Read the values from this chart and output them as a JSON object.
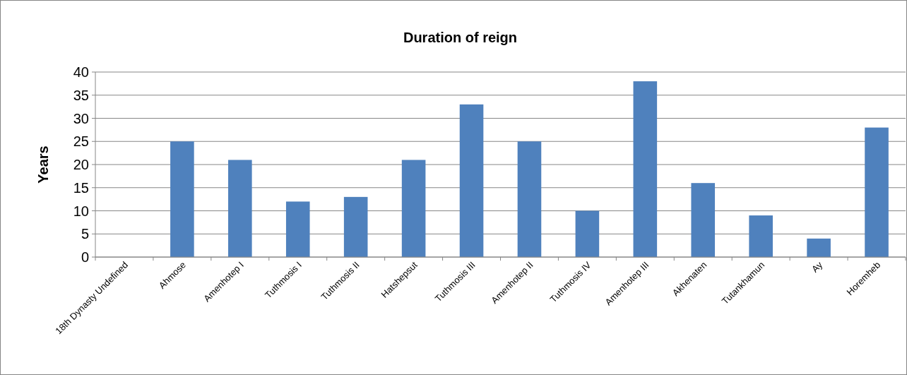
{
  "chart_data": {
    "type": "bar",
    "title": "Duration of reign",
    "ylabel": "Years",
    "categories": [
      "18th Dynasty Undefined",
      "Ahmose",
      "Amenhotep I",
      "Tuthmosis I",
      "Tuthmosis II",
      "Hatshepsut",
      "Tuthmosis III",
      "Amenhotep II",
      "Tuthmosis IV",
      "Amenhotep III",
      "Akhenaten",
      "Tutankhamun",
      "Ay",
      "Horemheb"
    ],
    "values": [
      null,
      25,
      21,
      12,
      13,
      21,
      33,
      25,
      10,
      38,
      16,
      9,
      4,
      28
    ],
    "color": "#4f81bd",
    "ylim": [
      0,
      40
    ],
    "yticks": [
      0,
      5,
      10,
      15,
      20,
      25,
      30,
      35,
      40
    ],
    "grid": "y"
  }
}
